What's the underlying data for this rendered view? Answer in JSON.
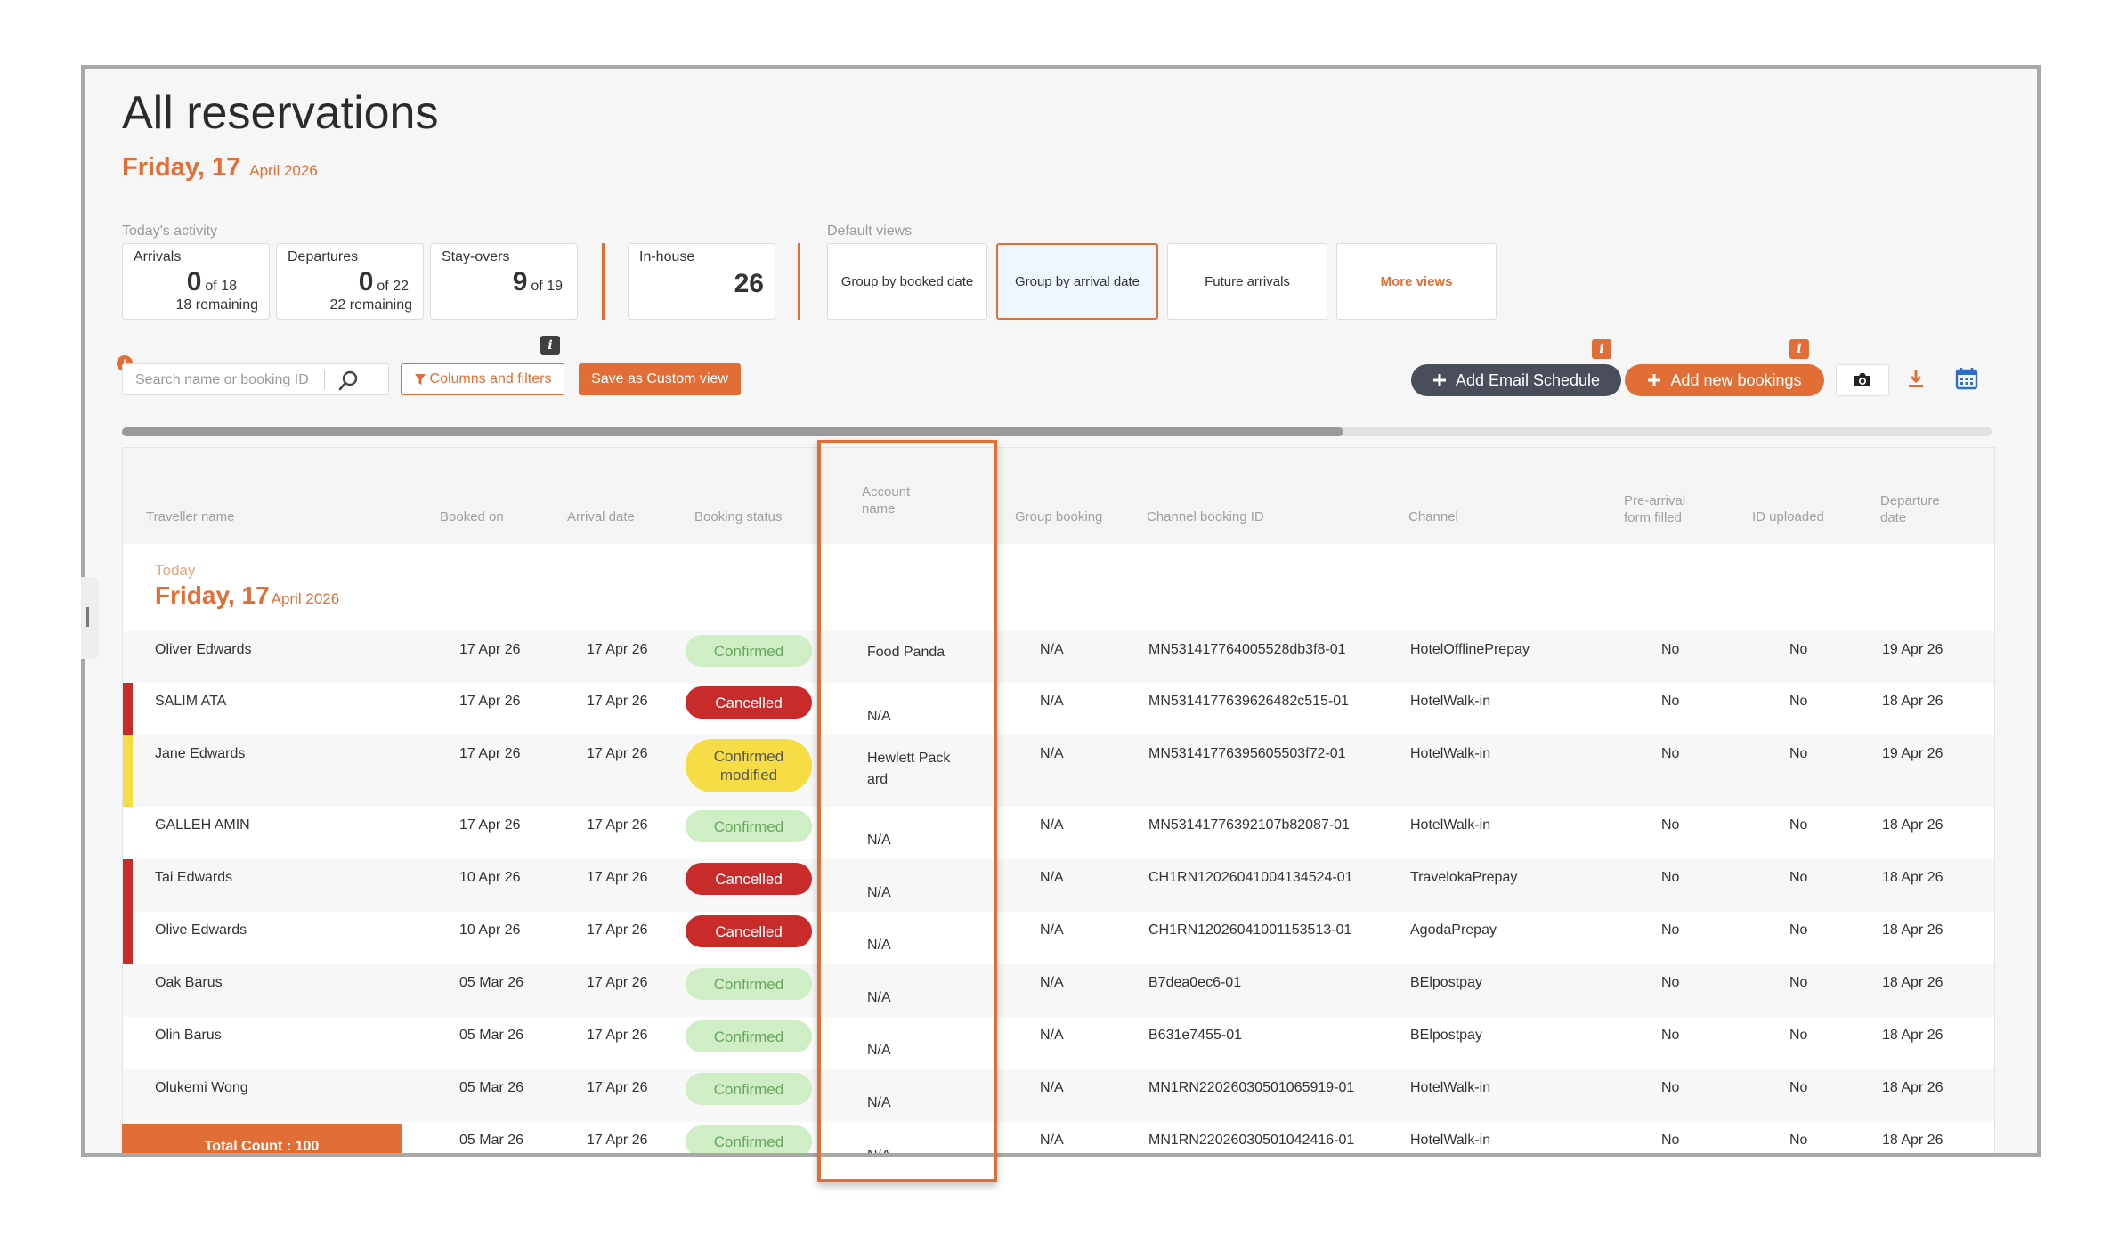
{
  "header": {
    "title": "All reservations",
    "date_big": "Friday, 17",
    "date_small": "April 2026"
  },
  "activity": {
    "label": "Today's activity",
    "arrivals": {
      "label": "Arrivals",
      "count": "0",
      "of": "of 18",
      "remaining": "18 remaining"
    },
    "departures": {
      "label": "Departures",
      "count": "0",
      "of": "of 22",
      "remaining": "22 remaining"
    },
    "stayovers": {
      "label": "Stay-overs",
      "count": "9",
      "of": "of 19"
    },
    "inhouse": {
      "label": "In-house",
      "count": "26"
    }
  },
  "views": {
    "label": "Default views",
    "items": [
      "Group by booked date",
      "Group by arrival date",
      "Future arrivals",
      "More views"
    ],
    "active": "Group by arrival date"
  },
  "toolbar": {
    "search_placeholder": "Search name or booking ID",
    "alert_badge": "!",
    "info_badge": "i",
    "columns_filters": "Columns and filters",
    "save_custom_view": "Save as Custom view",
    "add_email_schedule": "Add Email Schedule",
    "add_new_bookings": "Add new bookings"
  },
  "colors": {
    "accent": "#e26e37",
    "confirmed_bg": "#cfeec6",
    "confirmed_text": "#6aa660",
    "cancelled": "#c92a2a",
    "modified": "#f6dc45",
    "dark_button": "#4a4e5a"
  },
  "icons": [
    "search-icon",
    "filter-icon",
    "plus-icon",
    "camera-icon",
    "download-icon",
    "calendar-icon",
    "info-icon"
  ],
  "table": {
    "columns": {
      "traveller": "Traveller name",
      "booked_on": "Booked on",
      "arrival": "Arrival date",
      "status": "Booking status",
      "account_l1": "Account",
      "account_l2": "name",
      "group": "Group booking",
      "channel_id": "Channel booking ID",
      "channel": "Channel",
      "prearrival_l1": "Pre-arrival",
      "prearrival_l2": "form filled",
      "id_uploaded": "ID uploaded",
      "departure_l1": "Departure",
      "departure_l2": "date"
    },
    "group": {
      "small": "Today",
      "big": "Friday, 17",
      "month": "April 2026"
    },
    "rows": [
      {
        "name": "Oliver Edwards",
        "booked": "17 Apr 26",
        "arrival": "17 Apr 26",
        "status": "Confirmed",
        "account": "Food Panda",
        "group": "N/A",
        "channel_id": "MN531417764005528db3f8-01",
        "channel": "HotelOfflinePrepay",
        "prearrival": "No",
        "id": "No",
        "departure": "19 Apr 26"
      },
      {
        "name": "SALIM ATA",
        "booked": "17 Apr 26",
        "arrival": "17 Apr 26",
        "status": "Cancelled",
        "account": "N/A",
        "group": "N/A",
        "channel_id": "MN5314177639626482c515-01",
        "channel": "HotelWalk-in",
        "prearrival": "No",
        "id": "No",
        "departure": "18 Apr 26"
      },
      {
        "name": "Jane Edwards",
        "booked": "17 Apr 26",
        "arrival": "17 Apr 26",
        "status": "Confirmed modified",
        "account": "Hewlett Pack ard",
        "group": "N/A",
        "channel_id": "MN53141776395605503f72-01",
        "channel": "HotelWalk-in",
        "prearrival": "No",
        "id": "No",
        "departure": "19 Apr 26"
      },
      {
        "name": "GALLEH AMIN",
        "booked": "17 Apr 26",
        "arrival": "17 Apr 26",
        "status": "Confirmed",
        "account": "N/A",
        "group": "N/A",
        "channel_id": "MN53141776392107b82087-01",
        "channel": "HotelWalk-in",
        "prearrival": "No",
        "id": "No",
        "departure": "18 Apr 26"
      },
      {
        "name": "Tai Edwards",
        "booked": "10 Apr 26",
        "arrival": "17 Apr 26",
        "status": "Cancelled",
        "account": "N/A",
        "group": "N/A",
        "channel_id": "CH1RN12026041004134524-01",
        "channel": "TravelokaPrepay",
        "prearrival": "No",
        "id": "No",
        "departure": "18 Apr 26"
      },
      {
        "name": "Olive Edwards",
        "booked": "10 Apr 26",
        "arrival": "17 Apr 26",
        "status": "Cancelled",
        "account": "N/A",
        "group": "N/A",
        "channel_id": "CH1RN12026041001153513-01",
        "channel": "AgodaPrepay",
        "prearrival": "No",
        "id": "No",
        "departure": "18 Apr 26"
      },
      {
        "name": "Oak Barus",
        "booked": "05 Mar 26",
        "arrival": "17 Apr 26",
        "status": "Confirmed",
        "account": "N/A",
        "group": "N/A",
        "channel_id": "B7dea0ec6-01",
        "channel": "BElpostpay",
        "prearrival": "No",
        "id": "No",
        "departure": "18 Apr 26"
      },
      {
        "name": "Olin Barus",
        "booked": "05 Mar 26",
        "arrival": "17 Apr 26",
        "status": "Confirmed",
        "account": "N/A",
        "group": "N/A",
        "channel_id": "B631e7455-01",
        "channel": "BElpostpay",
        "prearrival": "No",
        "id": "No",
        "departure": "18 Apr 26"
      },
      {
        "name": "Olukemi Wong",
        "booked": "05 Mar 26",
        "arrival": "17 Apr 26",
        "status": "Confirmed",
        "account": "N/A",
        "group": "N/A",
        "channel_id": "MN1RN22026030501065919-01",
        "channel": "HotelWalk-in",
        "prearrival": "No",
        "id": "No",
        "departure": "18 Apr 26"
      },
      {
        "name": "",
        "booked": "05 Mar 26",
        "arrival": "17 Apr 26",
        "status": "Confirmed",
        "account": "N/A",
        "group": "N/A",
        "channel_id": "MN1RN22026030501042416-01",
        "channel": "HotelWalk-in",
        "prearrival": "No",
        "id": "No",
        "departure": "18 Apr 26"
      }
    ],
    "total_count": "Total Count : 100"
  }
}
